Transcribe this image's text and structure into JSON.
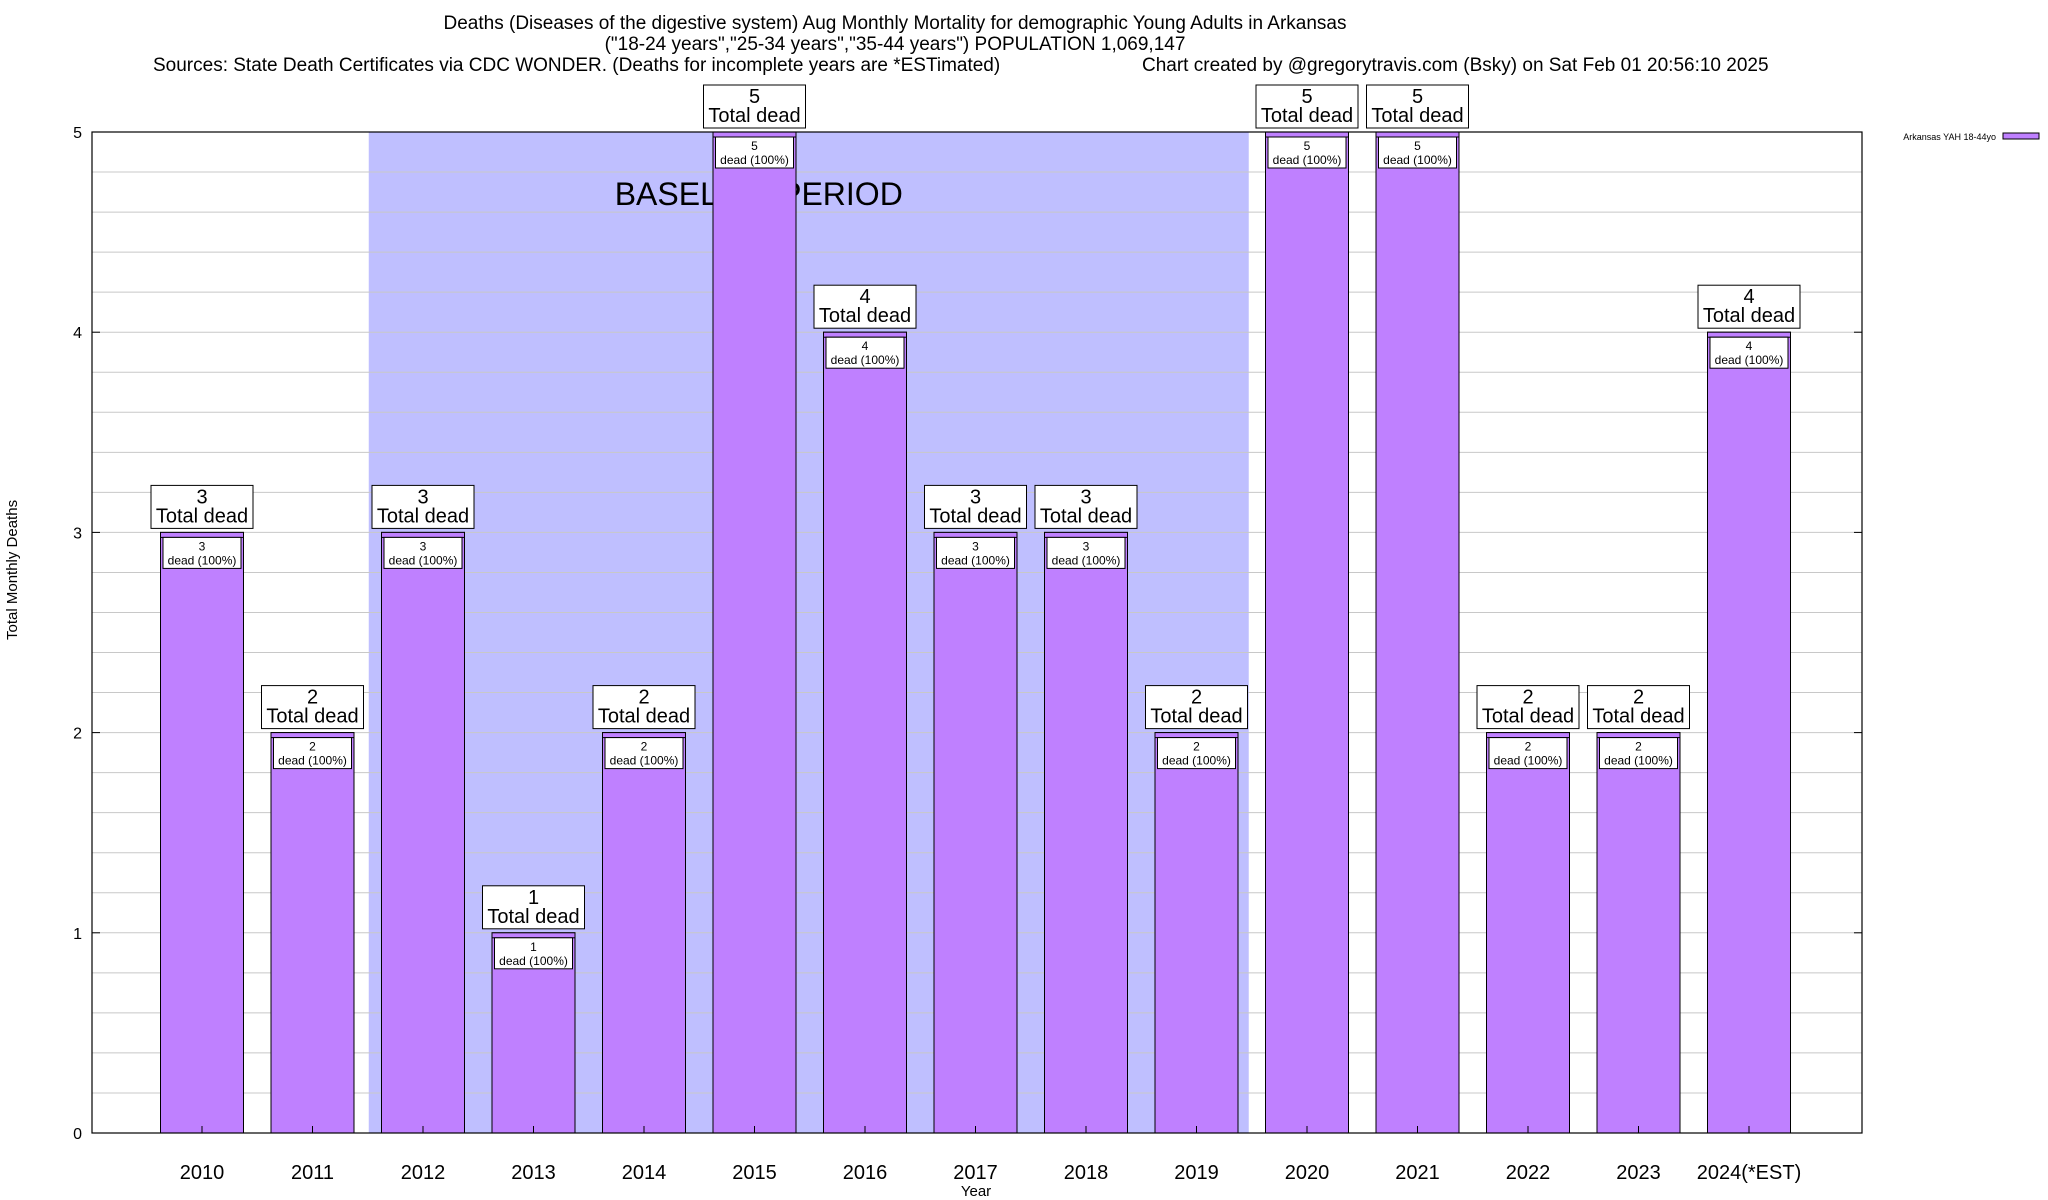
{
  "header": {
    "title_line1": "Deaths (Diseases of the digestive system) Aug Monthly Mortality for demographic Young Adults in Arkansas",
    "title_line2": "(\"18-24 years\",\"25-34 years\",\"35-44 years\") POPULATION 1,069,147",
    "sources": "Sources: State Death Certificates via CDC WONDER. (Deaths for incomplete years are *ESTimated)",
    "credit": "Chart created by @gregorytravis.com (Bsky) on Sat Feb 01 20:56:10 2025"
  },
  "chart_data": {
    "type": "bar",
    "title": "Deaths (Diseases of the digestive system) Aug Monthly Mortality for demographic Young Adults in Arkansas",
    "xlabel": "Year",
    "ylabel": "Total Monthly Deaths",
    "categories": [
      "2010",
      "2011",
      "2012",
      "2013",
      "2014",
      "2015",
      "2016",
      "2017",
      "2018",
      "2019",
      "2020",
      "2021",
      "2022",
      "2023",
      "2024(*EST)"
    ],
    "series": [
      {
        "name": "Arkansas YAH 18-44yo",
        "values": [
          3,
          2,
          3,
          1,
          2,
          5,
          4,
          3,
          3,
          2,
          5,
          5,
          2,
          2,
          4
        ]
      }
    ],
    "ylim": [
      0,
      5
    ],
    "yticks": [
      0,
      1,
      2,
      3,
      4,
      5
    ],
    "grid": true,
    "legend_position": "top-right",
    "bar_color": "#bf80ff",
    "baseline_band": {
      "label": "BASELINE PERIOD",
      "from": "2012",
      "to": "2019",
      "color": "#bfbfff"
    },
    "total_label_suffix": "Total dead",
    "inner_label_suffix": "dead (100%)"
  }
}
